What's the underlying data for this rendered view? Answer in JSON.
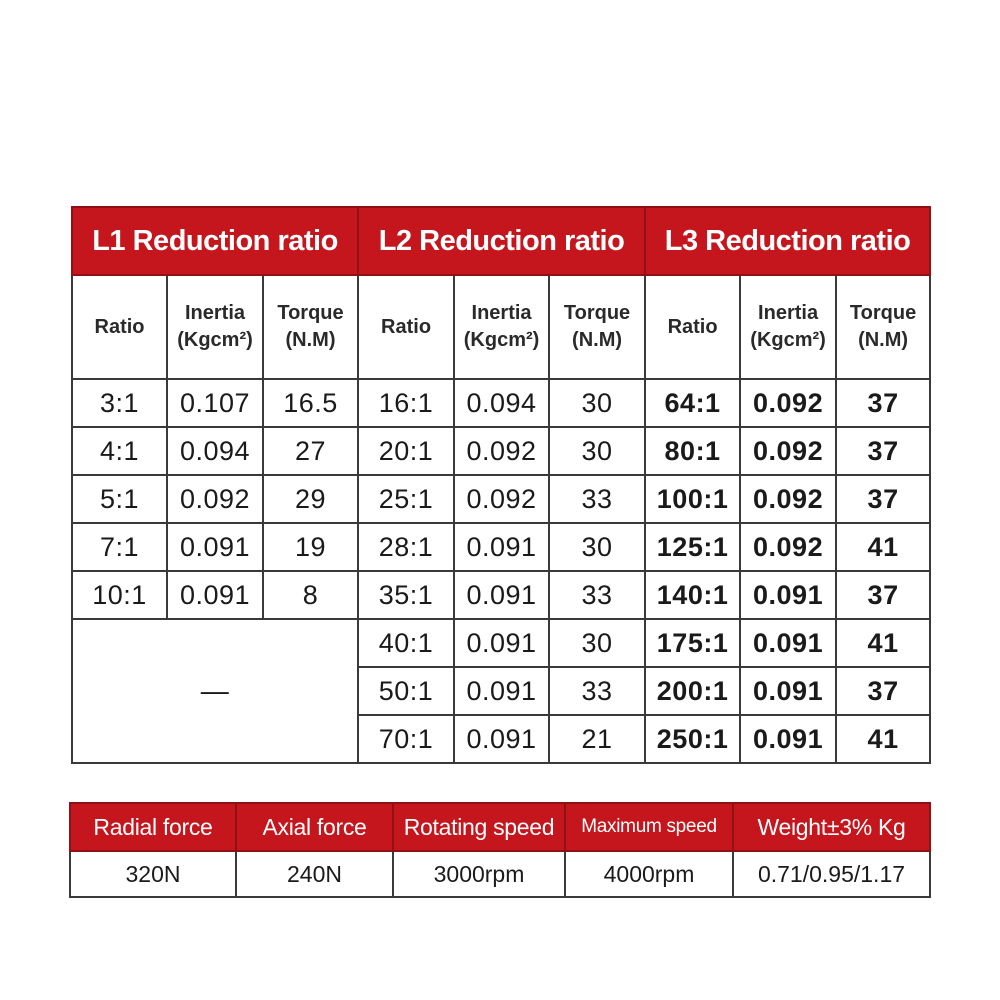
{
  "reduction": {
    "groups": [
      "L1 Reduction ratio",
      "L2 Reduction ratio",
      "L3 Reduction ratio"
    ],
    "columns": {
      "ratio": "Ratio",
      "inertia_line1": "Inertia",
      "inertia_line2": "(Kgcm²)",
      "torque_line1": "Torque",
      "torque_line2": "(N.M)"
    },
    "l1_rows": [
      [
        "3:1",
        "0.107",
        "16.5"
      ],
      [
        "4:1",
        "0.094",
        "27"
      ],
      [
        "5:1",
        "0.092",
        "29"
      ],
      [
        "7:1",
        "0.091",
        "19"
      ],
      [
        "10:1",
        "0.091",
        "8"
      ]
    ],
    "l1_empty": "—",
    "l2_rows": [
      [
        "16:1",
        "0.094",
        "30"
      ],
      [
        "20:1",
        "0.092",
        "30"
      ],
      [
        "25:1",
        "0.092",
        "33"
      ],
      [
        "28:1",
        "0.091",
        "30"
      ],
      [
        "35:1",
        "0.091",
        "33"
      ],
      [
        "40:1",
        "0.091",
        "30"
      ],
      [
        "50:1",
        "0.091",
        "33"
      ],
      [
        "70:1",
        "0.091",
        "21"
      ]
    ],
    "l3_rows": [
      [
        "64:1",
        "0.092",
        "37"
      ],
      [
        "80:1",
        "0.092",
        "37"
      ],
      [
        "100:1",
        "0.092",
        "37"
      ],
      [
        "125:1",
        "0.092",
        "41"
      ],
      [
        "140:1",
        "0.091",
        "37"
      ],
      [
        "175:1",
        "0.091",
        "41"
      ],
      [
        "200:1",
        "0.091",
        "37"
      ],
      [
        "250:1",
        "0.091",
        "41"
      ]
    ]
  },
  "parameters": {
    "headers": [
      "Radial force",
      "Axial force",
      "Rotating speed",
      "Maximum speed",
      "Weight±3% Kg"
    ],
    "values": [
      "320N",
      "240N",
      "3000rpm",
      "4000rpm",
      "0.71/0.95/1.17"
    ]
  },
  "colors": {
    "header_red": "#c4161c",
    "border": "#3a3a3a"
  }
}
